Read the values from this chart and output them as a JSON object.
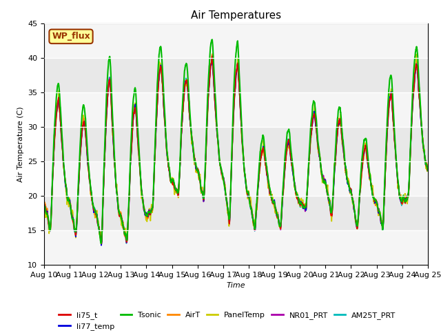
{
  "title": "Air Temperatures",
  "xlabel": "Time",
  "ylabel": "Air Temperature (C)",
  "ylim": [
    10,
    45
  ],
  "xlim": [
    0,
    15
  ],
  "x_tick_labels": [
    "Aug 10",
    "Aug 11",
    "Aug 12",
    "Aug 13",
    "Aug 14",
    "Aug 15",
    "Aug 16",
    "Aug 17",
    "Aug 18",
    "Aug 19",
    "Aug 20",
    "Aug 21",
    "Aug 22",
    "Aug 23",
    "Aug 24",
    "Aug 25"
  ],
  "background_color": "#e8e8e8",
  "band_color_light": "#f5f5f5",
  "legend_box_text": "WP_flux",
  "legend_box_bg": "#ffff99",
  "legend_box_border": "#993300",
  "series": {
    "li75_t": {
      "color": "#dd0000",
      "lw": 1.2
    },
    "li77_temp": {
      "color": "#0000dd",
      "lw": 1.2
    },
    "Tsonic": {
      "color": "#00bb00",
      "lw": 1.5
    },
    "AirT": {
      "color": "#ff8800",
      "lw": 1.2
    },
    "PanelTemp": {
      "color": "#cccc00",
      "lw": 1.2
    },
    "NR01_PRT": {
      "color": "#aa00aa",
      "lw": 1.2
    },
    "AM25T_PRT": {
      "color": "#00bbbb",
      "lw": 1.2
    }
  }
}
